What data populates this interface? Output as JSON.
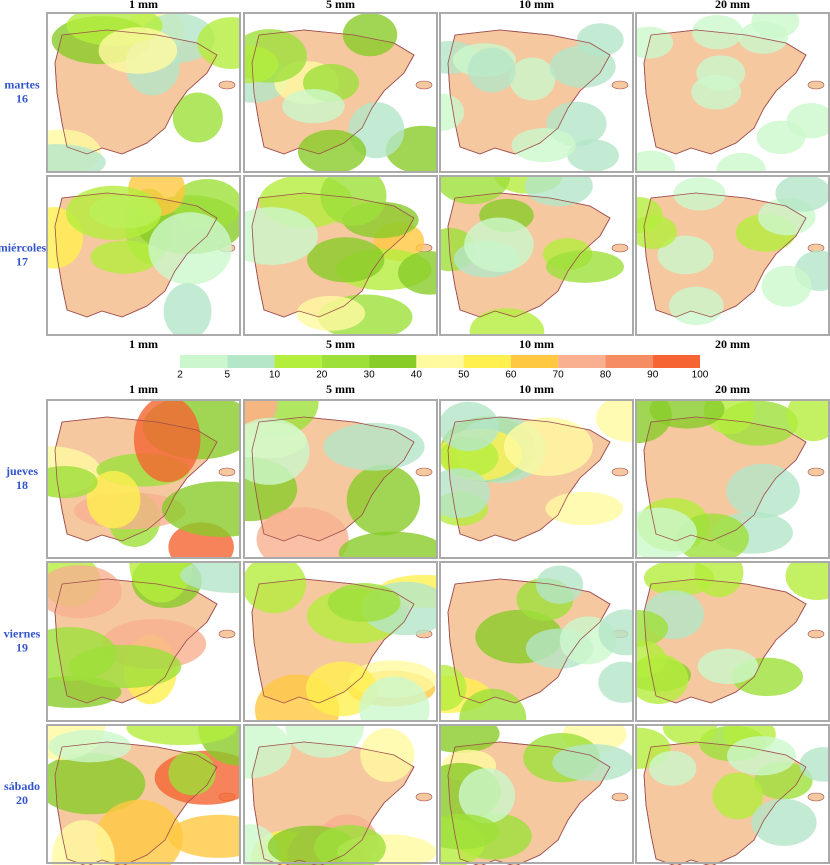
{
  "column_headers": [
    "1 mm",
    "5 mm",
    "10 mm",
    "20 mm"
  ],
  "row_labels": [
    {
      "day": "martes",
      "date": "16"
    },
    {
      "day": "miércoles",
      "date": "17"
    },
    {
      "day": "jueves",
      "date": "18"
    },
    {
      "day": "viernes",
      "date": "19"
    },
    {
      "day": "sábado",
      "date": "20"
    }
  ],
  "legend": {
    "values": [
      2,
      5,
      10,
      20,
      30,
      40,
      50,
      60,
      70,
      80,
      90,
      100
    ],
    "colors": [
      "#ccf7cc",
      "#b4e6c8",
      "#b4ee3c",
      "#9ee03a",
      "#88cc28",
      "#fffaa0",
      "#fff050",
      "#ffc840",
      "#f8b090",
      "#f58c64",
      "#f56432"
    ]
  }
}
